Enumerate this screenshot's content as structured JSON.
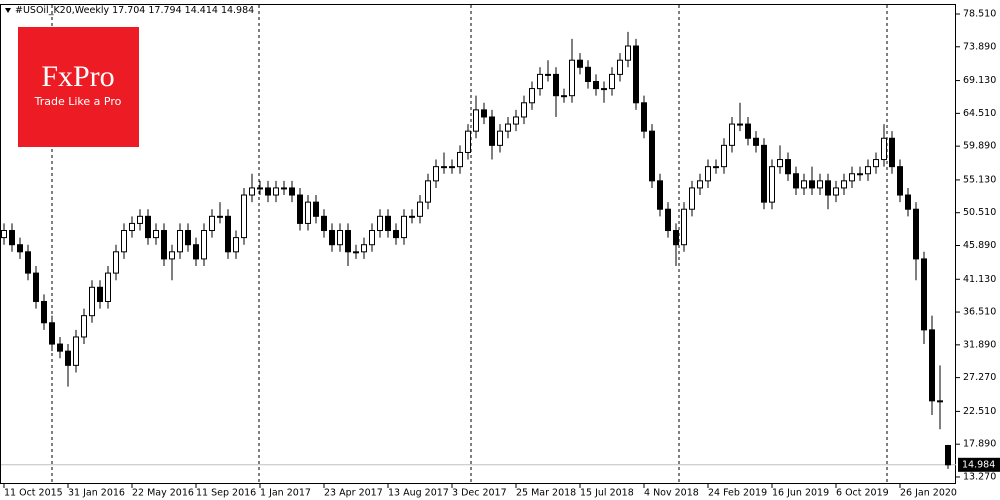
{
  "logo": {
    "brand": "FxPro",
    "tagline": "Trade Like a Pro"
  },
  "chart_data": {
    "type": "candlestick",
    "title": "#USOil_K20,Weekly",
    "categories": [
      "11 Oct 2015",
      null,
      null,
      null,
      null,
      null,
      null,
      null,
      "31 Jan 2016",
      null,
      null,
      null,
      null,
      null,
      null,
      null,
      "22 May 2016",
      null,
      null,
      null,
      null,
      null,
      null,
      null,
      "11 Sep 2016",
      null,
      null,
      null,
      null,
      null,
      null,
      null,
      "1 Jan 2017",
      null,
      null,
      null,
      null,
      null,
      null,
      null,
      "23 Apr 2017",
      null,
      null,
      null,
      null,
      null,
      null,
      null,
      "13 Aug 2017",
      null,
      null,
      null,
      null,
      null,
      null,
      null,
      "3 Dec 2017",
      null,
      null,
      null,
      null,
      null,
      null,
      null,
      "25 Mar 2018",
      null,
      null,
      null,
      null,
      null,
      null,
      null,
      "15 Jul 2018",
      null,
      null,
      null,
      null,
      null,
      null,
      null,
      "4 Nov 2018",
      null,
      null,
      null,
      null,
      null,
      null,
      null,
      "24 Feb 2019",
      null,
      null,
      null,
      null,
      null,
      null,
      null,
      "16 Jun 2019",
      null,
      null,
      null,
      null,
      null,
      null,
      null,
      "6 Oct 2019",
      null,
      null,
      null,
      null,
      null,
      null,
      null,
      "26 Jan 2020",
      null,
      null,
      null,
      null,
      null,
      null
    ],
    "open": [
      47,
      48,
      46,
      45,
      42,
      38,
      35,
      32,
      31,
      29,
      33,
      36,
      40,
      38,
      42,
      45,
      48,
      49,
      50,
      47,
      48,
      44,
      45,
      48,
      46,
      44,
      48,
      50,
      50,
      45,
      47,
      53,
      54,
      54,
      53,
      54,
      54,
      53,
      49,
      52,
      50,
      48,
      46,
      48,
      45,
      45,
      46,
      48,
      50,
      48,
      47,
      50,
      50,
      52,
      55,
      57,
      57,
      57,
      59,
      62,
      65,
      64,
      60,
      62,
      63,
      64,
      66,
      68,
      70,
      70,
      67,
      67,
      72,
      71,
      69,
      68,
      68,
      70,
      72,
      74,
      66,
      62,
      55,
      51,
      48,
      46,
      51,
      54,
      55,
      57,
      57,
      60,
      63,
      63,
      61,
      60,
      52,
      57,
      58,
      56,
      54,
      55,
      54,
      55,
      53,
      54,
      55,
      56,
      56,
      57,
      58,
      61,
      57,
      53,
      51,
      44,
      34,
      24,
      17.704
    ],
    "high": [
      49,
      49,
      47,
      46,
      43,
      39,
      36,
      33,
      32,
      34,
      37,
      41,
      41,
      43,
      46,
      49,
      50,
      51,
      51,
      49,
      49,
      46,
      49,
      49,
      47,
      49,
      51,
      52,
      51,
      48,
      54,
      56,
      55,
      55,
      55,
      55,
      55,
      54,
      53,
      53,
      51,
      49,
      49,
      49,
      46,
      47,
      49,
      51,
      51,
      49,
      51,
      51,
      53,
      56,
      58,
      59,
      58,
      60,
      63,
      67,
      66,
      65,
      63,
      64,
      65,
      67,
      69,
      71,
      72,
      71,
      68,
      75,
      73,
      72,
      70,
      69,
      71,
      73,
      76,
      75,
      67,
      63,
      56,
      52,
      49,
      52,
      55,
      56,
      58,
      58,
      61,
      64,
      66,
      64,
      62,
      61,
      58,
      60,
      59,
      57,
      56,
      57,
      56,
      56,
      55,
      56,
      57,
      57,
      58,
      59,
      63,
      62,
      58,
      54,
      52,
      45,
      36,
      29,
      17.794
    ],
    "low": [
      46,
      45,
      44,
      41,
      37,
      34,
      31,
      30,
      26,
      28,
      32,
      35,
      37,
      37,
      41,
      44,
      47,
      48,
      46,
      46,
      43,
      41,
      44,
      45,
      43,
      43,
      47,
      49,
      44,
      44,
      46,
      52,
      53,
      52,
      52,
      53,
      52,
      48,
      48,
      49,
      47,
      45,
      45,
      43,
      44,
      44,
      45,
      47,
      47,
      46,
      46,
      49,
      49,
      51,
      54,
      56,
      56,
      56,
      58,
      61,
      63,
      58,
      59,
      61,
      62,
      63,
      65,
      67,
      69,
      64,
      66,
      66,
      70,
      68,
      67,
      66,
      67,
      69,
      71,
      65,
      61,
      54,
      50,
      47,
      43,
      45,
      50,
      53,
      54,
      56,
      56,
      59,
      62,
      60,
      59,
      51,
      51,
      56,
      55,
      53,
      53,
      53,
      53,
      51,
      52,
      53,
      54,
      55,
      55,
      56,
      57,
      56,
      52,
      50,
      41,
      32,
      22,
      20,
      14.414
    ],
    "close": [
      48,
      46,
      45,
      42,
      38,
      35,
      32,
      31,
      29,
      33,
      36,
      40,
      38,
      42,
      45,
      48,
      49,
      50,
      47,
      48,
      44,
      45,
      48,
      46,
      44,
      48,
      50,
      50,
      45,
      47,
      53,
      54,
      54,
      53,
      54,
      54,
      53,
      49,
      52,
      50,
      48,
      46,
      48,
      45,
      45,
      46,
      48,
      50,
      48,
      47,
      50,
      50,
      52,
      55,
      57,
      57,
      57,
      59,
      62,
      65,
      64,
      60,
      62,
      63,
      64,
      66,
      68,
      70,
      70,
      67,
      67,
      72,
      71,
      69,
      68,
      68,
      70,
      72,
      74,
      66,
      62,
      55,
      51,
      48,
      46,
      51,
      54,
      55,
      57,
      57,
      60,
      63,
      63,
      61,
      60,
      52,
      57,
      58,
      56,
      54,
      55,
      54,
      55,
      53,
      54,
      55,
      56,
      56,
      57,
      58,
      61,
      57,
      53,
      51,
      44,
      34,
      24,
      24,
      14.984
    ],
    "up_color": "#ffffff",
    "down_color": "#000000",
    "ylim": [
      12.28,
      79.92
    ],
    "yticks": [
      {
        "value": 78.51,
        "label": "78.510"
      },
      {
        "value": 73.89,
        "label": "73.890"
      },
      {
        "value": 69.13,
        "label": "69.130"
      },
      {
        "value": 64.51,
        "label": "64.510"
      },
      {
        "value": 59.89,
        "label": "59.890"
      },
      {
        "value": 55.13,
        "label": "55.130"
      },
      {
        "value": 50.51,
        "label": "50.510"
      },
      {
        "value": 45.89,
        "label": "45.890"
      },
      {
        "value": 41.13,
        "label": "41.130"
      },
      {
        "value": 36.51,
        "label": "36.510"
      },
      {
        "value": 31.89,
        "label": "31.890"
      },
      {
        "value": 27.27,
        "label": "27.270"
      },
      {
        "value": 22.51,
        "label": "22.510"
      },
      {
        "value": 17.89,
        "label": "17.890"
      },
      {
        "value": 13.27,
        "label": "13.270"
      }
    ]
  }
}
